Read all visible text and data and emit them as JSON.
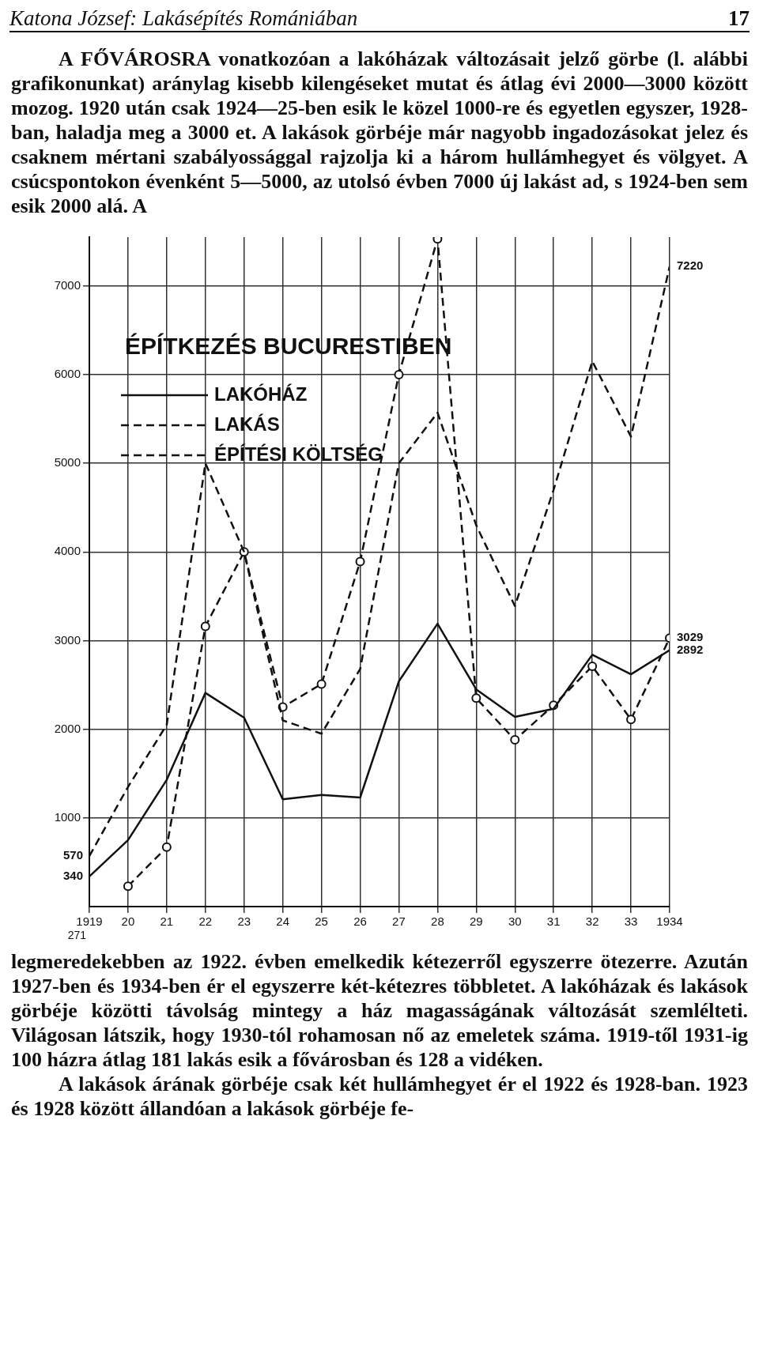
{
  "chart_data": {
    "type": "line",
    "title": "ÉPÍTKEZÉS BUCURESTIBEN",
    "x": [
      1919,
      1920,
      1921,
      1922,
      1923,
      1924,
      1925,
      1926,
      1927,
      1928,
      1929,
      1930,
      1931,
      1932,
      1933,
      1934
    ],
    "xlim": [
      1919,
      1934
    ],
    "xticks": [
      {
        "value": 1919,
        "label": "1919"
      },
      {
        "value": 1920,
        "label": "20"
      },
      {
        "value": 1921,
        "label": "21"
      },
      {
        "value": 1922,
        "label": "22"
      },
      {
        "value": 1923,
        "label": "23"
      },
      {
        "value": 1924,
        "label": "24"
      },
      {
        "value": 1925,
        "label": "25"
      },
      {
        "value": 1926,
        "label": "26"
      },
      {
        "value": 1927,
        "label": "27"
      },
      {
        "value": 1928,
        "label": "28"
      },
      {
        "value": 1929,
        "label": "29"
      },
      {
        "value": 1930,
        "label": "30"
      },
      {
        "value": 1931,
        "label": "31"
      },
      {
        "value": 1932,
        "label": "32"
      },
      {
        "value": 1933,
        "label": "33"
      },
      {
        "value": 1934,
        "label": "1934"
      }
    ],
    "ylim": [
      0,
      7550
    ],
    "yticks": [
      1000,
      2000,
      3000,
      4000,
      5000,
      6000,
      7000
    ],
    "grid": true,
    "legend": "top left",
    "series": [
      {
        "name": "LAKÓHÁZ",
        "color": "#111111",
        "line_style": "solid",
        "marker": "none",
        "values": [
          340,
          750,
          1430,
          2410,
          2130,
          1210,
          1260,
          1230,
          2540,
          3190,
          2450,
          2140,
          2230,
          2840,
          2620,
          2892
        ],
        "value_labels": [
          "340",
          null,
          null,
          null,
          null,
          null,
          null,
          null,
          null,
          null,
          null,
          null,
          null,
          null,
          null,
          "2892"
        ]
      },
      {
        "name": "LAKÁS",
        "color": "#111111",
        "line_style": "dashed",
        "marker": "none",
        "values": [
          570,
          1350,
          2050,
          5000,
          4000,
          2100,
          1950,
          2680,
          5000,
          5570,
          4300,
          3390,
          4700,
          6150,
          5300,
          7220
        ],
        "value_labels": [
          "570",
          null,
          null,
          null,
          null,
          null,
          null,
          null,
          null,
          null,
          null,
          null,
          null,
          null,
          null,
          "7220"
        ]
      },
      {
        "name": "ÉPÍTÉSI KÖLTSÉG",
        "color": "#111111",
        "line_style": "dashed",
        "marker": "circle",
        "values": [
          null,
          230,
          670,
          3160,
          4000,
          2250,
          2510,
          3890,
          6000,
          7530,
          2350,
          1880,
          2270,
          2710,
          2110,
          3029
        ],
        "value_labels": [
          null,
          null,
          null,
          null,
          null,
          null,
          null,
          null,
          null,
          null,
          null,
          null,
          null,
          null,
          null,
          "3029"
        ]
      }
    ],
    "annotations": [
      "Katona József: Lakásépítés Romániában",
      "17",
      "A FŐVÁROSRA vonatkozóan a lakóházak változásait jelző görbe (l. alábbi grafikonunkat) aránylag kisebb kilengéseket mutat és átlag évi 2000—3000 között mozog. 1920 után csak 1924—25-ben esik le közel 1000-re és egyetlen egyszer, 1928-ban, haladja meg a 3000 et. A lakások görbéje már nagyobb ingadozásokat jelez és csaknem mértani szabályossággal rajzolja ki a három hullámhegyet és völgyet. A csúcspontokon évenként 5—5000, az utolsó évben 7000 új lakást ad, s 1924-ben sem esik 2000 alá. A",
      "271",
      "legmeredekebben az 1922. évben emelkedik kétezerről egyszerre ötezerre. Azután 1927-ben és 1934-ben ér el egyszerre két-kétezres többletet. A lakóházak és lakások görbéje közötti távolság mintegy a ház magasságának változását szemlélteti. Világosan látszik, hogy 1930-tól rohamosan nő az emeletek száma. 1919-től 1931-ig 100 házra átlag 181 lakás esik a fővárosban és 128 a vidéken.",
      "A lakások árának görbéje csak két hullámhegyet ér el 1922 és 1928-ban. 1923 és 1928 között állandóan a lakások görbéje fe-"
    ]
  }
}
